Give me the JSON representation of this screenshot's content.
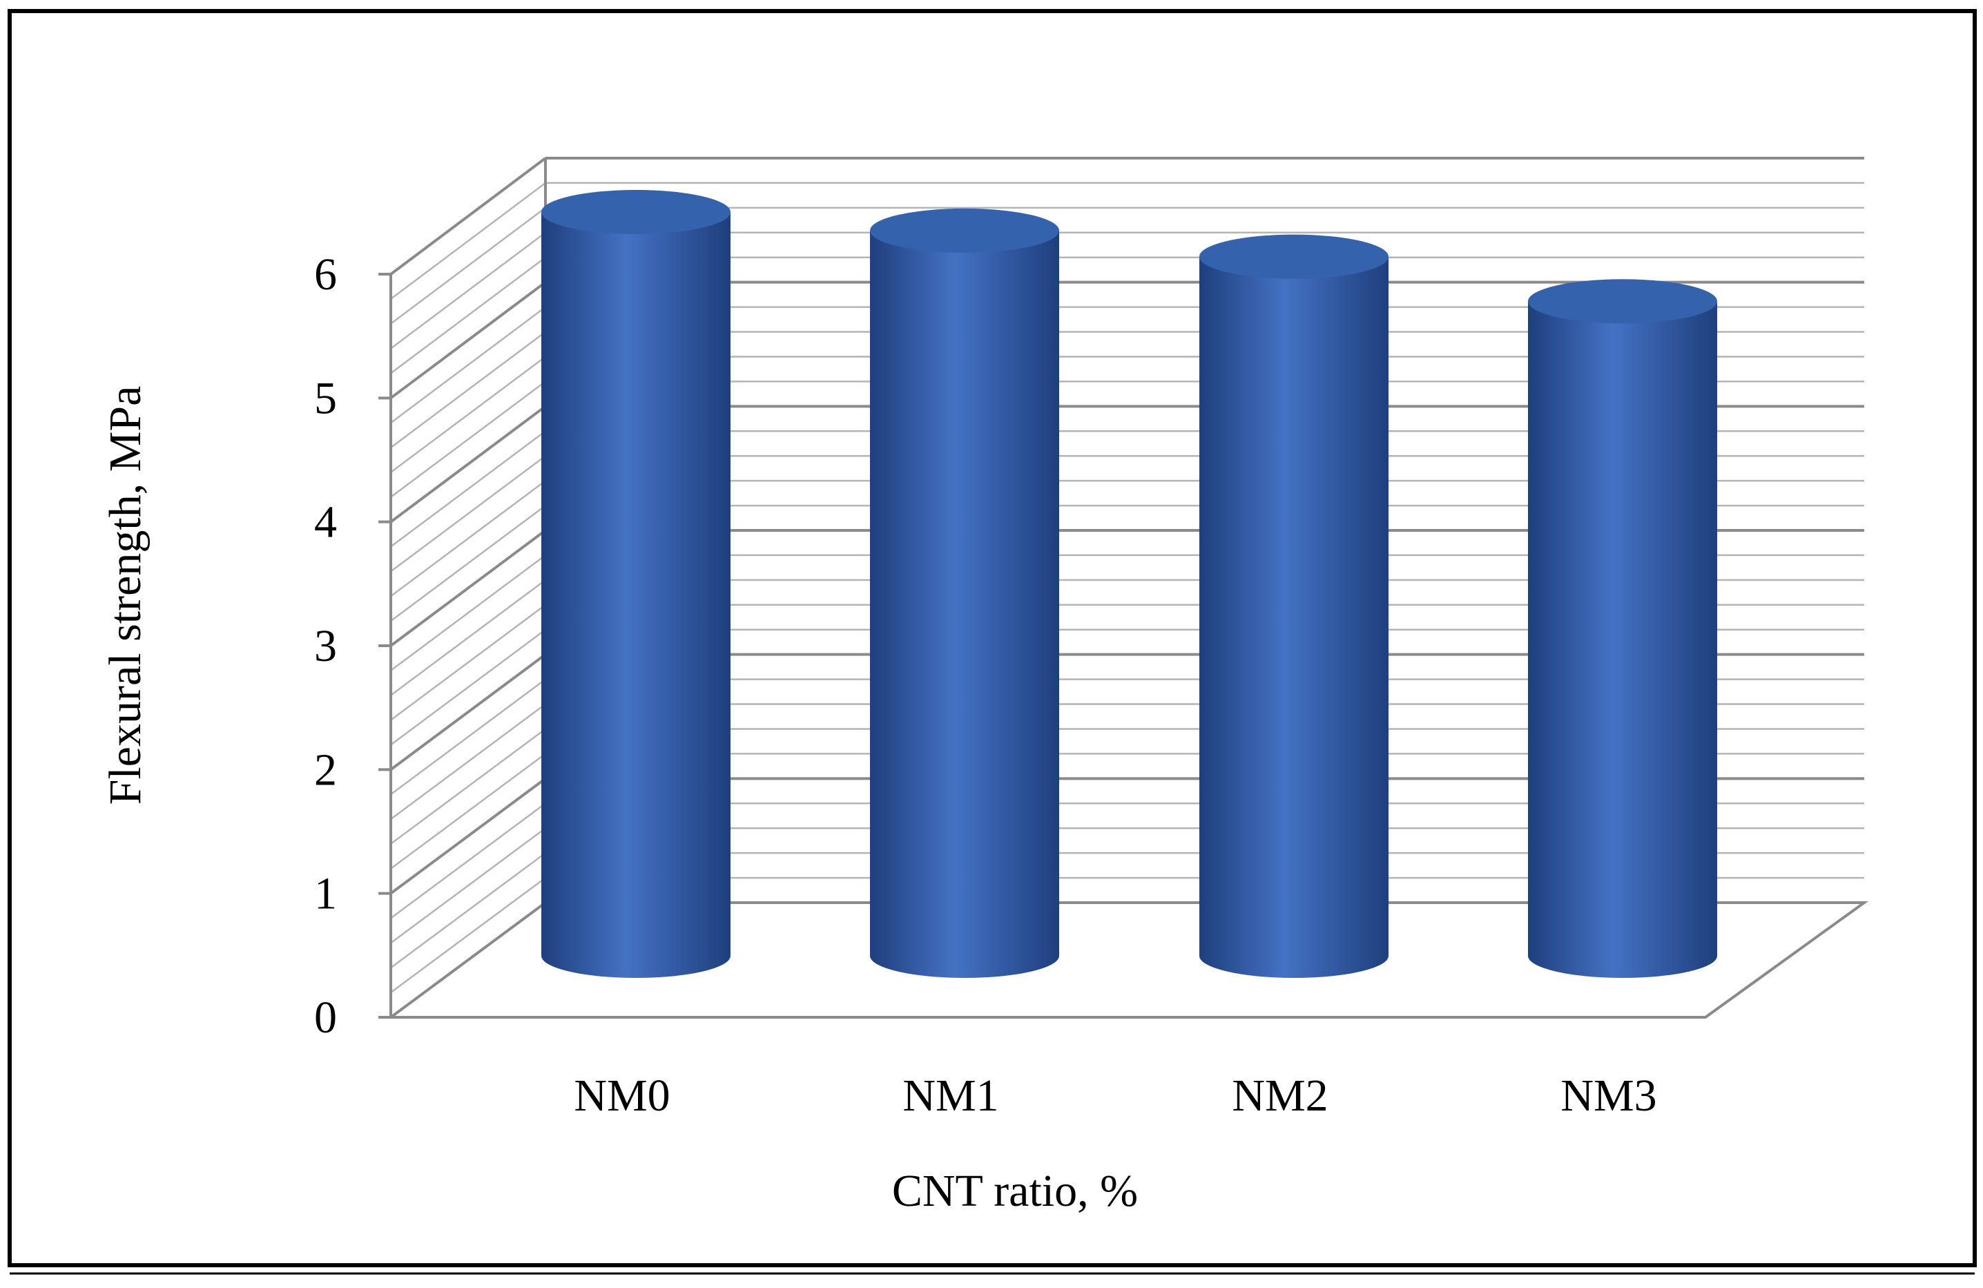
{
  "chart_data": {
    "type": "bar",
    "style": "3d-cylinder",
    "categories": [
      "NM0",
      "NM1",
      "NM2",
      "NM3"
    ],
    "series": [
      {
        "values": [
          6.0,
          5.85,
          5.64,
          5.28
        ]
      }
    ],
    "xlabel": "CNT ratio, %",
    "ylabel": "Flexural strength, MPa",
    "ylim": [
      0,
      6
    ],
    "yticks": [
      "0",
      "1",
      "2",
      "3",
      "4",
      "5",
      "6"
    ],
    "minor_gridlines_per_unit": 5,
    "grid": true,
    "legend": "none",
    "colors": {
      "bar": "#4472c4",
      "bar_dark": "#1f3f7d",
      "bar_top": "#3462ac",
      "grid_major": "#8a8a8a",
      "grid_minor": "#b4b4b4",
      "frame": "#000000"
    }
  }
}
